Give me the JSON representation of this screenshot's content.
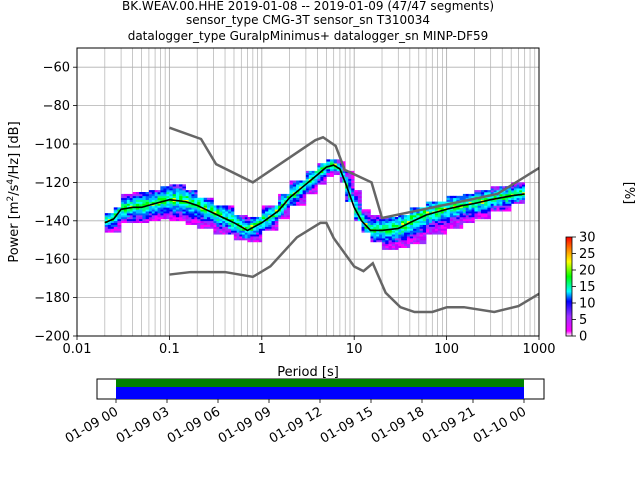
{
  "title_lines": [
    "BK.WEAV.00.HHE   2019-01-08 -- 2019-01-09  (47/47 segments)",
    "sensor_type CMG-3T sensor_sn T310034",
    "datalogger_type GuralpMinimus+ datalogger_sn MINP-DF59"
  ],
  "chart_data": [
    {
      "type": "heatmap",
      "subtype": "probabilistic-power-spectral-density",
      "title": "BK.WEAV.00.HHE   2019-01-08 -- 2019-01-09  (47/47 segments)",
      "xlabel": "Period [s]",
      "ylabel": "Power [m²/s⁴/Hz] [dB]",
      "x_scale": "log",
      "xlim": [
        0.01,
        1000
      ],
      "ylim": [
        -200,
        -50
      ],
      "x_ticks": [
        0.01,
        0.1,
        1,
        10,
        100,
        1000
      ],
      "x_tick_labels": [
        "0.01",
        "0.1",
        "1",
        "10",
        "100",
        "1000"
      ],
      "y_ticks": [
        -200,
        -180,
        -160,
        -140,
        -120,
        -100,
        -80,
        -60
      ],
      "y_tick_labels": [
        "−200",
        "−180",
        "−160",
        "−140",
        "−120",
        "−100",
        "−80",
        "−60"
      ],
      "grid": true,
      "colorbar": {
        "label": "[%]",
        "range": [
          0,
          30
        ],
        "ticks": [
          0,
          5,
          10,
          15,
          20,
          25,
          30
        ]
      },
      "mean_curve": {
        "x": [
          0.02,
          0.025,
          0.03,
          0.04,
          0.05,
          0.07,
          0.1,
          0.15,
          0.2,
          0.3,
          0.5,
          0.7,
          1.0,
          1.5,
          2.0,
          3.0,
          4.0,
          5.0,
          6.0,
          7.0,
          8.0,
          10,
          12,
          15,
          20,
          30,
          40,
          60,
          100,
          150,
          200,
          300,
          500,
          700
        ],
        "y": [
          -141,
          -139,
          -134,
          -133,
          -133,
          -131,
          -129,
          -130,
          -132,
          -136,
          -141,
          -145,
          -141,
          -135,
          -128,
          -121,
          -116,
          -112,
          -111,
          -113,
          -120,
          -133,
          -140,
          -145,
          -145,
          -144,
          -141,
          -137,
          -134,
          -132,
          -131,
          -129,
          -127,
          -126
        ]
      },
      "density": {
        "x_bands": [
          {
            "x0": 0.02,
            "x1": 0.025,
            "lo": -146,
            "hi": -136
          },
          {
            "x0": 0.025,
            "x1": 0.03,
            "lo": -146,
            "hi": -133
          },
          {
            "x0": 0.03,
            "x1": 0.04,
            "lo": -141,
            "hi": -126
          },
          {
            "x0": 0.04,
            "x1": 0.06,
            "lo": -141,
            "hi": -125
          },
          {
            "x0": 0.06,
            "x1": 0.08,
            "lo": -140,
            "hi": -124
          },
          {
            "x0": 0.08,
            "x1": 0.1,
            "lo": -139,
            "hi": -122
          },
          {
            "x0": 0.1,
            "x1": 0.15,
            "lo": -140,
            "hi": -121
          },
          {
            "x0": 0.15,
            "x1": 0.2,
            "lo": -142,
            "hi": -124
          },
          {
            "x0": 0.2,
            "x1": 0.3,
            "lo": -144,
            "hi": -128
          },
          {
            "x0": 0.3,
            "x1": 0.5,
            "lo": -147,
            "hi": -132
          },
          {
            "x0": 0.5,
            "x1": 0.7,
            "lo": -150,
            "hi": -137
          },
          {
            "x0": 0.7,
            "x1": 1.0,
            "lo": -151,
            "hi": -138
          },
          {
            "x0": 1.0,
            "x1": 1.5,
            "lo": -145,
            "hi": -132
          },
          {
            "x0": 1.5,
            "x1": 2.0,
            "lo": -139,
            "hi": -126
          },
          {
            "x0": 2.0,
            "x1": 3.0,
            "lo": -132,
            "hi": -119
          },
          {
            "x0": 3.0,
            "x1": 4.0,
            "lo": -126,
            "hi": -114
          },
          {
            "x0": 4.0,
            "x1": 5.0,
            "lo": -121,
            "hi": -110
          },
          {
            "x0": 5.0,
            "x1": 6.0,
            "lo": -117,
            "hi": -108
          },
          {
            "x0": 6.0,
            "x1": 7.0,
            "lo": -116,
            "hi": -108
          },
          {
            "x0": 7.0,
            "x1": 8.0,
            "lo": -120,
            "hi": -109
          },
          {
            "x0": 8.0,
            "x1": 10,
            "lo": -130,
            "hi": -114
          },
          {
            "x0": 10,
            "x1": 12,
            "lo": -140,
            "hi": -124
          },
          {
            "x0": 12,
            "x1": 15,
            "lo": -146,
            "hi": -134
          },
          {
            "x0": 15,
            "x1": 20,
            "lo": -151,
            "hi": -137
          },
          {
            "x0": 20,
            "x1": 30,
            "lo": -155,
            "hi": -138
          },
          {
            "x0": 30,
            "x1": 40,
            "lo": -154,
            "hi": -137
          },
          {
            "x0": 40,
            "x1": 60,
            "lo": -152,
            "hi": -133
          },
          {
            "x0": 60,
            "x1": 100,
            "lo": -147,
            "hi": -130
          },
          {
            "x0": 100,
            "x1": 150,
            "lo": -144,
            "hi": -127
          },
          {
            "x0": 150,
            "x1": 200,
            "lo": -141,
            "hi": -126
          },
          {
            "x0": 200,
            "x1": 300,
            "lo": -139,
            "hi": -124
          },
          {
            "x0": 300,
            "x1": 500,
            "lo": -135,
            "hi": -122
          },
          {
            "x0": 500,
            "x1": 700,
            "lo": -131,
            "hi": -120
          }
        ]
      },
      "noise_models": [
        {
          "name": "high",
          "x": [
            0.1,
            0.22,
            0.32,
            0.8,
            3.8,
            4.6,
            6.3,
            7.9,
            15.4,
            20,
            354.8,
            1000
          ],
          "y": [
            -91.5,
            -97.4,
            -110.5,
            -120,
            -98,
            -96.5,
            -101,
            -113.5,
            -120,
            -138.5,
            -126,
            -112.5
          ]
        },
        {
          "name": "low",
          "x": [
            0.1,
            0.17,
            0.4,
            0.8,
            1.24,
            2.4,
            4.3,
            5.0,
            6.0,
            10,
            12.6,
            15.9,
            21.9,
            31.6,
            45,
            70,
            101,
            154,
            328,
            600,
            1000
          ],
          "y": [
            -168,
            -166.7,
            -166.7,
            -169.2,
            -163.7,
            -148.6,
            -141.1,
            -141.1,
            -149,
            -163.8,
            -166.2,
            -162.1,
            -177.5,
            -185,
            -187.5,
            -187.5,
            -185,
            -185,
            -187.5,
            -184.4,
            -178
          ]
        }
      ]
    },
    {
      "type": "bar",
      "subtype": "data-coverage",
      "x_tick_labels": [
        "01-09 00",
        "01-09 03",
        "01-09 06",
        "01-09 09",
        "01-09 12",
        "01-09 15",
        "01-09 18",
        "01-09 21",
        "01-10 00"
      ],
      "coverage": [
        {
          "name": "used-segments",
          "color": "#008000",
          "start": "01-09 00",
          "end": "01-10 00"
        },
        {
          "name": "data-available",
          "color": "#0000ff",
          "start": "01-09 00",
          "end": "01-10 00"
        }
      ]
    }
  ]
}
